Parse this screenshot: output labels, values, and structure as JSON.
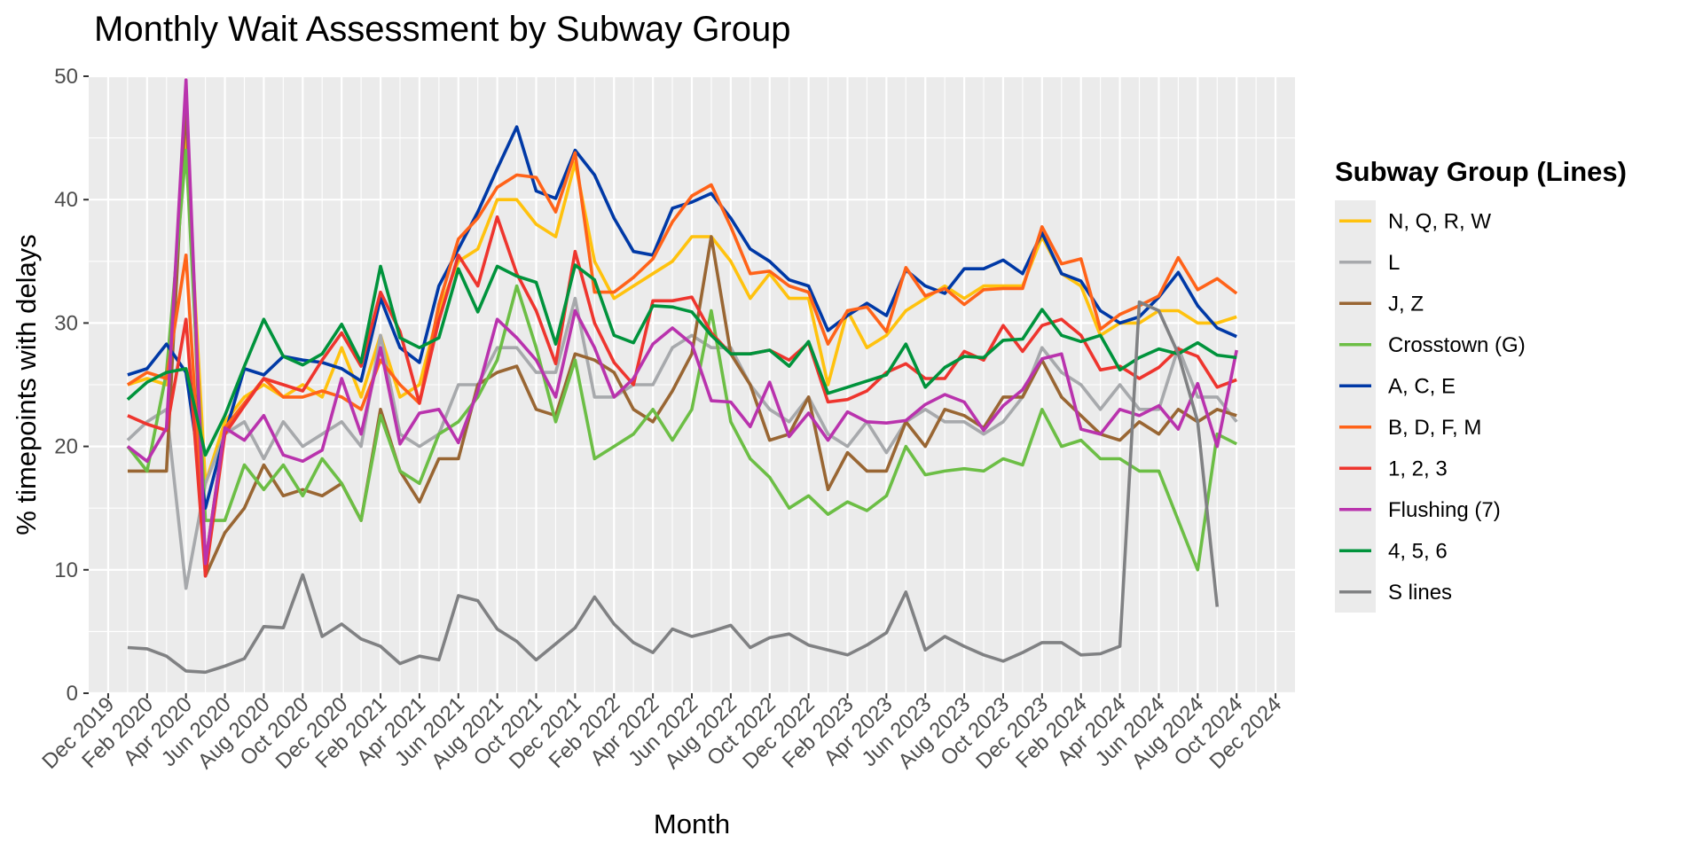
{
  "chart_data": {
    "type": "line",
    "title": "Monthly Wait Assessment by Subway Group",
    "xlabel": "Month",
    "ylabel": "% timepoints with delays",
    "ylim": [
      0,
      50
    ],
    "yticks": [
      0,
      10,
      20,
      30,
      40,
      50
    ],
    "xlim": [
      "2019-11",
      "2025-01"
    ],
    "xticks": [
      "Dec 2019",
      "Feb 2020",
      "Apr 2020",
      "Jun 2020",
      "Aug 2020",
      "Oct 2020",
      "Dec 2020",
      "Feb 2021",
      "Apr 2021",
      "Jun 2021",
      "Aug 2021",
      "Oct 2021",
      "Dec 2021",
      "Feb 2022",
      "Apr 2022",
      "Jun 2022",
      "Aug 2022",
      "Oct 2022",
      "Dec 2022",
      "Feb 2023",
      "Apr 2023",
      "Jun 2023",
      "Aug 2023",
      "Oct 2023",
      "Dec 2023",
      "Feb 2024",
      "Apr 2024",
      "Jun 2024",
      "Aug 2024",
      "Oct 2024",
      "Dec 2024"
    ],
    "grid": true,
    "legend_title": "Subway Group (Lines)",
    "legend_position": "right",
    "x": [
      "2020-01",
      "2020-02",
      "2020-03",
      "2020-04",
      "2020-05",
      "2020-06",
      "2020-07",
      "2020-08",
      "2020-09",
      "2020-10",
      "2020-11",
      "2020-12",
      "2021-01",
      "2021-02",
      "2021-03",
      "2021-04",
      "2021-05",
      "2021-06",
      "2021-07",
      "2021-08",
      "2021-09",
      "2021-10",
      "2021-11",
      "2021-12",
      "2022-01",
      "2022-02",
      "2022-03",
      "2022-04",
      "2022-05",
      "2022-06",
      "2022-07",
      "2022-08",
      "2022-09",
      "2022-10",
      "2022-11",
      "2022-12",
      "2023-01",
      "2023-02",
      "2023-03",
      "2023-04",
      "2023-05",
      "2023-06",
      "2023-07",
      "2023-08",
      "2023-09",
      "2023-10",
      "2023-11",
      "2023-12",
      "2024-01",
      "2024-02",
      "2024-03",
      "2024-04",
      "2024-05",
      "2024-06",
      "2024-07",
      "2024-08",
      "2024-09",
      "2024-10"
    ],
    "series": [
      {
        "name": "N, Q, R, W",
        "color": "#FFC20E",
        "values": [
          25,
          25.5,
          25,
          45,
          17,
          22,
          24,
          25,
          24,
          25,
          24,
          28,
          24,
          29,
          24,
          25,
          31,
          35,
          36,
          40,
          40,
          38,
          37,
          43,
          35,
          32,
          33,
          34,
          35,
          37,
          37,
          35,
          32,
          34,
          32,
          32,
          25,
          31,
          28,
          29,
          31,
          32,
          33,
          32,
          33,
          33,
          33,
          37,
          34,
          33,
          29,
          30,
          30,
          31,
          31,
          30,
          30,
          30.5
        ]
      },
      {
        "name": "L",
        "color": "#A7A9AC",
        "values": [
          20.5,
          22,
          23,
          8.5,
          17,
          21,
          22,
          19,
          22,
          20,
          21,
          22,
          20,
          29,
          21,
          20,
          21,
          25,
          25,
          28,
          28,
          26,
          26,
          32,
          24,
          24,
          25,
          25,
          28,
          29,
          28,
          28,
          25,
          23,
          22,
          24,
          21,
          20,
          22,
          19.5,
          22,
          23,
          22,
          22,
          21,
          22,
          24,
          28,
          26,
          25,
          23,
          25,
          23,
          23,
          28,
          24,
          24,
          22
        ]
      },
      {
        "name": "J, Z",
        "color": "#996633",
        "values": [
          18,
          18,
          18,
          48,
          9.5,
          13,
          15,
          18.5,
          16,
          16.5,
          16,
          17,
          14,
          23,
          18,
          15.5,
          19,
          19,
          25,
          26,
          26.5,
          23,
          22.5,
          27.5,
          27,
          26,
          23,
          22,
          24.5,
          27.5,
          37,
          27.5,
          25,
          20.5,
          21,
          24,
          16.5,
          19.5,
          18,
          18,
          22,
          20,
          23,
          22.5,
          21.5,
          24,
          24,
          27,
          24,
          22.5,
          21,
          20.5,
          22,
          21,
          23,
          22,
          23,
          22.5
        ]
      },
      {
        "name": "Crosstown (G)",
        "color": "#6CBE45",
        "values": [
          20,
          18,
          26,
          44,
          14,
          14,
          18.5,
          16.5,
          18.5,
          16,
          19,
          17,
          14,
          22.5,
          18,
          17,
          21,
          22,
          24,
          27,
          33,
          28,
          22,
          27,
          19,
          20,
          21,
          23,
          20.5,
          23,
          31,
          22,
          19,
          17.5,
          15,
          16,
          14.5,
          15.5,
          14.8,
          16,
          20,
          17.7,
          18,
          18.2,
          18,
          19,
          18.5,
          23,
          20,
          20.5,
          19,
          19,
          18,
          18,
          14,
          10,
          21,
          20.2
        ]
      },
      {
        "name": "A, C, E",
        "color": "#0039A6",
        "values": [
          25.8,
          26.3,
          28.3,
          26,
          15,
          21,
          26.3,
          25.8,
          27.3,
          27,
          26.8,
          26.3,
          25.3,
          32,
          28,
          26.8,
          33,
          36,
          39,
          42.5,
          45.9,
          40.7,
          40.1,
          44,
          42,
          38.5,
          35.8,
          35.5,
          39.3,
          39.8,
          40.5,
          38.5,
          36,
          35,
          33.5,
          33,
          29.4,
          30.6,
          31.6,
          30.6,
          34.3,
          33,
          32.4,
          34.4,
          34.4,
          35.1,
          34,
          37.3,
          34,
          33.4,
          31,
          30,
          30.5,
          32.1,
          34.1,
          31.4,
          29.6,
          28.9
        ]
      },
      {
        "name": "B, D, F, M",
        "color": "#FF6319",
        "values": [
          25,
          26,
          25.5,
          35.5,
          10.5,
          21.5,
          23.5,
          25.5,
          24,
          24,
          24.5,
          24,
          23,
          27,
          25,
          23.5,
          31.5,
          36.8,
          38.5,
          41,
          42,
          41.8,
          39,
          43.8,
          32.5,
          32.5,
          33.7,
          35.2,
          38.2,
          40.3,
          41.2,
          37.8,
          34,
          34.2,
          33,
          32.5,
          28.3,
          31,
          31.3,
          29.3,
          34.5,
          32.2,
          32.8,
          31.5,
          32.7,
          32.8,
          32.8,
          37.8,
          34.8,
          35.2,
          29.5,
          30.7,
          31.4,
          32.2,
          35.3,
          32.7,
          33.6,
          32.4
        ]
      },
      {
        "name": "1, 2, 3",
        "color": "#EE352E",
        "values": [
          22.5,
          21.8,
          21.3,
          30.3,
          9.5,
          21,
          23.3,
          25.5,
          25,
          24.5,
          27,
          29.2,
          26.5,
          32.5,
          29.3,
          23.5,
          30.2,
          35.5,
          33,
          38.6,
          34,
          31,
          26.7,
          35.8,
          30,
          26.8,
          25,
          31.8,
          31.8,
          32.1,
          29.2,
          27.5,
          27.5,
          27.8,
          27,
          28.4,
          23.6,
          23.8,
          24.5,
          26,
          26.7,
          25.5,
          25.5,
          27.7,
          27,
          29.8,
          27.7,
          29.8,
          30.3,
          29,
          26.2,
          26.5,
          25.5,
          26.4,
          27.9,
          27.3,
          24.8,
          25.4
        ]
      },
      {
        "name": "Flushing (7)",
        "color": "#B933AD",
        "values": [
          20,
          18.8,
          21.5,
          49.7,
          10.5,
          21.5,
          20.5,
          22.5,
          19.3,
          18.8,
          19.7,
          25.5,
          21,
          28,
          20.2,
          22.7,
          23,
          20.3,
          24.5,
          30.3,
          28.8,
          27,
          24,
          31,
          28,
          24,
          25.5,
          28.3,
          29.6,
          28.3,
          23.7,
          23.6,
          21.6,
          25.2,
          20.8,
          22.7,
          20.5,
          22.8,
          22,
          21.9,
          22.1,
          23.4,
          24.2,
          23.6,
          21.3,
          23.3,
          24.6,
          27.1,
          27.5,
          21.4,
          21,
          23,
          22.5,
          23.3,
          21.4,
          25.1,
          20,
          27.8
        ]
      },
      {
        "name": "4, 5, 6",
        "color": "#00933C",
        "values": [
          23.8,
          25.2,
          26,
          26.3,
          19.3,
          22.5,
          26.5,
          30.3,
          27.3,
          26.6,
          27.5,
          29.9,
          26.8,
          34.6,
          28.8,
          28,
          28.8,
          34.4,
          30.9,
          34.6,
          33.8,
          33.3,
          28.3,
          34.7,
          33.5,
          29,
          28.4,
          31.4,
          31.3,
          30.9,
          29,
          27.5,
          27.5,
          27.8,
          26.5,
          28.5,
          24.3,
          24.8,
          25.3,
          25.8,
          28.3,
          24.8,
          26.4,
          27.3,
          27.2,
          28.6,
          28.7,
          31.1,
          29,
          28.5,
          29,
          26.2,
          27.2,
          27.9,
          27.5,
          28.4,
          27.4,
          27.2
        ]
      },
      {
        "name": "S lines",
        "color": "#808183",
        "values": [
          3.7,
          3.6,
          3,
          1.8,
          1.7,
          2.2,
          2.8,
          5.4,
          5.3,
          9.6,
          4.6,
          5.6,
          4.4,
          3.8,
          2.4,
          3,
          2.7,
          7.9,
          7.5,
          5.2,
          4.2,
          2.7,
          4,
          5.3,
          7.8,
          5.6,
          4.1,
          3.3,
          5.2,
          4.6,
          5,
          5.5,
          3.7,
          4.5,
          4.8,
          3.9,
          3.5,
          3.1,
          3.9,
          4.9,
          8.2,
          3.5,
          4.6,
          3.8,
          3.1,
          2.6,
          3.3,
          4.1,
          4.1,
          3.1,
          3.2,
          3.8,
          31.7,
          31,
          27.5,
          22,
          7,
          null
        ]
      }
    ]
  }
}
